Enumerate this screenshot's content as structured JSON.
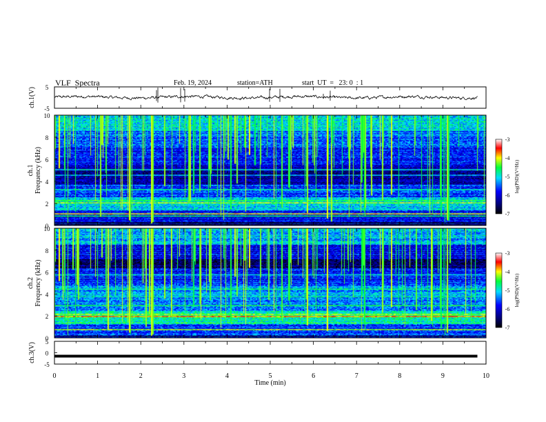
{
  "header": {
    "title": "VLF  Spectra",
    "date": "Feb. 19, 2024",
    "station": "station=ATH",
    "start_ut": "start  UT  =   23: 0  : 1"
  },
  "chart_data": [
    {
      "type": "line",
      "name": "ch1-waveform",
      "ylabel": "ch.1(V)",
      "ylim": [
        -5,
        5
      ],
      "yticks": [
        "5",
        "-5"
      ],
      "x_range_min": [
        0,
        10
      ],
      "data_extent_min": [
        0,
        9.8
      ]
    },
    {
      "type": "heatmap",
      "name": "ch1-spectrogram",
      "ylabel": "ch.1\nFrequency  (kHz)",
      "ylim": [
        0,
        10
      ],
      "yticks": [
        "0",
        "2",
        "4",
        "6",
        "8",
        "10"
      ],
      "colorbar": {
        "label": "log(PSD)(V²/Hz)",
        "ticks": [
          "-3",
          "-4",
          "-5",
          "-6",
          "-7"
        ],
        "range": [
          -7,
          -3
        ]
      }
    },
    {
      "type": "heatmap",
      "name": "ch2-spectrogram",
      "ylabel": "ch.2\nFrequency  (kHz)",
      "ylim": [
        0,
        10
      ],
      "yticks": [
        "0",
        "2",
        "4",
        "6",
        "8",
        "10"
      ],
      "colorbar": {
        "label": "log(PSD)(V²/Hz)",
        "ticks": [
          "-3",
          "-4",
          "-5",
          "-6",
          "-7"
        ],
        "range": [
          -7,
          -3
        ]
      }
    },
    {
      "type": "line",
      "name": "ch3-waveform",
      "ylabel": "ch.3(V)",
      "ylim": [
        -5,
        5
      ],
      "yticks": [
        "5",
        "0",
        "-5"
      ],
      "constant_value": -1.5
    }
  ],
  "x_axis": {
    "label": "Time  (min)",
    "ticks": [
      "0",
      "1",
      "2",
      "3",
      "4",
      "5",
      "6",
      "7",
      "8",
      "9",
      "10"
    ],
    "range": [
      0,
      10
    ]
  },
  "colors": {
    "waveform": "#000000",
    "colormap": [
      "#000000",
      "#0000ff",
      "#00ffff",
      "#00ff00",
      "#ffff00",
      "#ff0000",
      "#ffffff"
    ]
  }
}
